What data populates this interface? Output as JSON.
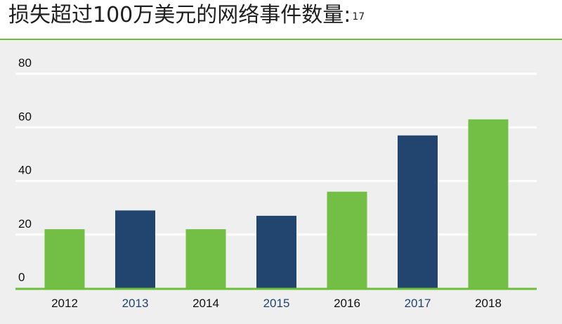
{
  "header": {
    "title": "损失超过100万美元的网络事件数量:",
    "footnote": "17"
  },
  "colors": {
    "green": "#73be44",
    "navy": "#21456e",
    "baseline": "#6cbf3a",
    "panel": "#efefef"
  },
  "chart_data": {
    "type": "bar",
    "categories": [
      "2012",
      "2013",
      "2014",
      "2015",
      "2016",
      "2017",
      "2018"
    ],
    "values": [
      22,
      29,
      22,
      27,
      36,
      57,
      63
    ],
    "bar_colors": [
      "green",
      "navy",
      "green",
      "navy",
      "green",
      "navy",
      "green"
    ],
    "label_colors": [
      "#111111",
      "#21456e",
      "#111111",
      "#21456e",
      "#111111",
      "#21456e",
      "#111111"
    ],
    "yticks": [
      "0",
      "20",
      "40",
      "60",
      "80"
    ],
    "ylim": [
      0,
      80
    ],
    "grid": true
  }
}
